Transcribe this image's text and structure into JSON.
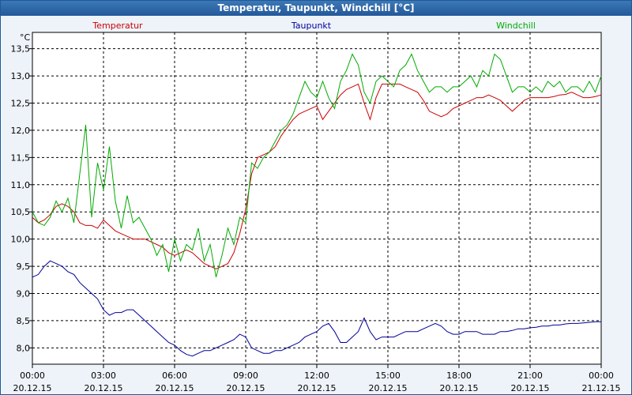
{
  "window": {
    "title": "Temperatur, Taupunkt, Windchill [°C]"
  },
  "chart_data": {
    "type": "line",
    "title": "Temperatur, Taupunkt, Windchill [°C]",
    "ylabel": "°C",
    "xlabel": "",
    "ylim": [
      7.7,
      13.8
    ],
    "yticks": [
      8.0,
      8.5,
      9.0,
      9.5,
      10.0,
      10.5,
      11.0,
      11.5,
      12.0,
      12.5,
      13.0,
      13.5
    ],
    "ytick_labels": [
      "8,0",
      "8,5",
      "9,0",
      "9,5",
      "10,0",
      "10,5",
      "11,0",
      "11,5",
      "12,0",
      "12,5",
      "13,0",
      "13,5"
    ],
    "xlim": [
      0,
      24
    ],
    "xticks": [
      0,
      3,
      6,
      9,
      12,
      15,
      18,
      21,
      24
    ],
    "xtick_labels": [
      [
        "00:00",
        "20.12.15"
      ],
      [
        "03:00",
        "20.12.15"
      ],
      [
        "06:00",
        "20.12.15"
      ],
      [
        "09:00",
        "20.12.15"
      ],
      [
        "12:00",
        "20.12.15"
      ],
      [
        "15:00",
        "20.12.15"
      ],
      [
        "18:00",
        "20.12.15"
      ],
      [
        "21:00",
        "20.12.15"
      ],
      [
        "00:00",
        "21.12.15"
      ]
    ],
    "grid": true,
    "x_unit": "hours since 20.12.15 00:00",
    "series": [
      {
        "name": "Temperatur",
        "color": "#cc0000",
        "x": [
          0,
          0.25,
          0.5,
          0.75,
          1.0,
          1.25,
          1.5,
          1.75,
          2.0,
          2.25,
          2.5,
          2.75,
          3.0,
          3.25,
          3.5,
          3.75,
          4.0,
          4.25,
          4.5,
          4.75,
          5.0,
          5.25,
          5.5,
          5.75,
          6.0,
          6.25,
          6.5,
          6.75,
          7.0,
          7.25,
          7.5,
          7.75,
          8.0,
          8.25,
          8.5,
          8.75,
          9.0,
          9.25,
          9.5,
          9.75,
          10.0,
          10.25,
          10.5,
          10.75,
          11.0,
          11.25,
          11.5,
          11.75,
          12.0,
          12.25,
          12.5,
          12.75,
          13.0,
          13.25,
          13.5,
          13.75,
          14.0,
          14.25,
          14.5,
          14.75,
          15.0,
          15.25,
          15.5,
          15.75,
          16.0,
          16.25,
          16.5,
          16.75,
          17.0,
          17.25,
          17.5,
          17.75,
          18.0,
          18.25,
          18.5,
          18.75,
          19.0,
          19.25,
          19.5,
          19.75,
          20.0,
          20.25,
          20.5,
          20.75,
          21.0,
          21.25,
          21.5,
          21.75,
          22.0,
          22.25,
          22.5,
          22.75,
          23.0,
          23.25,
          23.5,
          23.75,
          24.0
        ],
        "values": [
          10.4,
          10.3,
          10.35,
          10.45,
          10.6,
          10.65,
          10.6,
          10.5,
          10.3,
          10.25,
          10.25,
          10.2,
          10.35,
          10.25,
          10.15,
          10.1,
          10.05,
          10.0,
          10.0,
          10.0,
          9.95,
          9.9,
          9.85,
          9.75,
          9.7,
          9.75,
          9.8,
          9.75,
          9.65,
          9.55,
          9.5,
          9.45,
          9.5,
          9.55,
          9.75,
          10.1,
          10.55,
          11.2,
          11.5,
          11.55,
          11.6,
          11.7,
          11.9,
          12.05,
          12.2,
          12.3,
          12.35,
          12.4,
          12.45,
          12.2,
          12.35,
          12.5,
          12.65,
          12.75,
          12.8,
          12.85,
          12.5,
          12.2,
          12.6,
          12.85,
          12.85,
          12.85,
          12.85,
          12.8,
          12.75,
          12.7,
          12.55,
          12.35,
          12.3,
          12.25,
          12.3,
          12.4,
          12.45,
          12.5,
          12.55,
          12.6,
          12.6,
          12.65,
          12.6,
          12.55,
          12.45,
          12.35,
          12.45,
          12.55,
          12.6,
          12.6,
          12.6,
          12.6,
          12.62,
          12.65,
          12.66,
          12.7,
          12.65,
          12.6,
          12.6,
          12.62,
          12.65
        ]
      },
      {
        "name": "Taupunkt",
        "color": "#00009a",
        "x": [
          0,
          0.25,
          0.5,
          0.75,
          1.0,
          1.25,
          1.5,
          1.75,
          2.0,
          2.25,
          2.5,
          2.75,
          3.0,
          3.25,
          3.5,
          3.75,
          4.0,
          4.25,
          4.5,
          4.75,
          5.0,
          5.25,
          5.5,
          5.75,
          6.0,
          6.25,
          6.5,
          6.75,
          7.0,
          7.25,
          7.5,
          7.75,
          8.0,
          8.25,
          8.5,
          8.75,
          9.0,
          9.25,
          9.5,
          9.75,
          10.0,
          10.25,
          10.5,
          10.75,
          11.0,
          11.25,
          11.5,
          11.75,
          12.0,
          12.25,
          12.5,
          12.75,
          13.0,
          13.25,
          13.5,
          13.75,
          14.0,
          14.25,
          14.5,
          14.75,
          15.0,
          15.25,
          15.5,
          15.75,
          16.0,
          16.25,
          16.5,
          16.75,
          17.0,
          17.25,
          17.5,
          17.75,
          18.0,
          18.25,
          18.5,
          18.75,
          19.0,
          19.25,
          19.5,
          19.75,
          20.0,
          20.25,
          20.5,
          20.75,
          21.0,
          21.25,
          21.5,
          21.75,
          22.0,
          22.25,
          22.5,
          22.75,
          23.0,
          23.25,
          23.5,
          23.75,
          24.0
        ],
        "values": [
          9.3,
          9.35,
          9.5,
          9.6,
          9.55,
          9.5,
          9.4,
          9.35,
          9.2,
          9.1,
          9.0,
          8.9,
          8.7,
          8.6,
          8.65,
          8.65,
          8.7,
          8.7,
          8.6,
          8.5,
          8.4,
          8.3,
          8.2,
          8.1,
          8.05,
          7.95,
          7.88,
          7.85,
          7.9,
          7.95,
          7.95,
          8.0,
          8.05,
          8.1,
          8.15,
          8.25,
          8.2,
          8.0,
          7.95,
          7.9,
          7.9,
          7.95,
          7.95,
          8.0,
          8.05,
          8.1,
          8.2,
          8.25,
          8.3,
          8.4,
          8.45,
          8.3,
          8.1,
          8.1,
          8.2,
          8.3,
          8.55,
          8.3,
          8.15,
          8.2,
          8.2,
          8.2,
          8.25,
          8.3,
          8.3,
          8.3,
          8.35,
          8.4,
          8.45,
          8.4,
          8.3,
          8.25,
          8.25,
          8.3,
          8.3,
          8.3,
          8.25,
          8.25,
          8.25,
          8.3,
          8.3,
          8.32,
          8.35,
          8.35,
          8.37,
          8.38,
          8.4,
          8.4,
          8.42,
          8.42,
          8.44,
          8.45,
          8.45,
          8.46,
          8.47,
          8.48,
          8.48
        ]
      },
      {
        "name": "Windchill",
        "color": "#00aa00",
        "x": [
          0,
          0.25,
          0.5,
          0.75,
          1.0,
          1.25,
          1.5,
          1.75,
          2.0,
          2.25,
          2.5,
          2.75,
          3.0,
          3.25,
          3.5,
          3.75,
          4.0,
          4.25,
          4.5,
          4.75,
          5.0,
          5.25,
          5.5,
          5.75,
          6.0,
          6.25,
          6.5,
          6.75,
          7.0,
          7.25,
          7.5,
          7.75,
          8.0,
          8.25,
          8.5,
          8.75,
          9.0,
          9.25,
          9.5,
          9.75,
          10.0,
          10.25,
          10.5,
          10.75,
          11.0,
          11.25,
          11.5,
          11.75,
          12.0,
          12.25,
          12.5,
          12.75,
          13.0,
          13.25,
          13.5,
          13.75,
          14.0,
          14.25,
          14.5,
          14.75,
          15.0,
          15.25,
          15.5,
          15.75,
          16.0,
          16.25,
          16.5,
          16.75,
          17.0,
          17.25,
          17.5,
          17.75,
          18.0,
          18.25,
          18.5,
          18.75,
          19.0,
          19.25,
          19.5,
          19.75,
          20.0,
          20.25,
          20.5,
          20.75,
          21.0,
          21.25,
          21.5,
          21.75,
          22.0,
          22.25,
          22.5,
          22.75,
          23.0,
          23.25,
          23.5,
          23.75,
          24.0
        ],
        "values": [
          10.5,
          10.3,
          10.25,
          10.4,
          10.7,
          10.5,
          10.75,
          10.3,
          11.2,
          12.1,
          10.4,
          11.4,
          10.9,
          11.7,
          10.7,
          10.2,
          10.8,
          10.3,
          10.4,
          10.2,
          10.0,
          9.7,
          9.9,
          9.4,
          10.0,
          9.6,
          9.9,
          9.8,
          10.2,
          9.6,
          9.9,
          9.3,
          9.7,
          10.2,
          9.9,
          10.4,
          10.3,
          11.4,
          11.3,
          11.5,
          11.6,
          11.8,
          12.0,
          12.1,
          12.3,
          12.6,
          12.9,
          12.7,
          12.6,
          12.9,
          12.6,
          12.4,
          12.9,
          13.1,
          13.4,
          13.2,
          12.7,
          12.5,
          12.9,
          13.0,
          12.9,
          12.8,
          13.1,
          13.2,
          13.4,
          13.1,
          12.9,
          12.7,
          12.8,
          12.8,
          12.7,
          12.8,
          12.8,
          12.9,
          13.0,
          12.8,
          13.1,
          13.0,
          13.4,
          13.3,
          13.0,
          12.7,
          12.8,
          12.8,
          12.7,
          12.8,
          12.7,
          12.9,
          12.8,
          12.9,
          12.7,
          12.8,
          12.8,
          12.7,
          12.9,
          12.7,
          13.0
        ]
      }
    ]
  }
}
